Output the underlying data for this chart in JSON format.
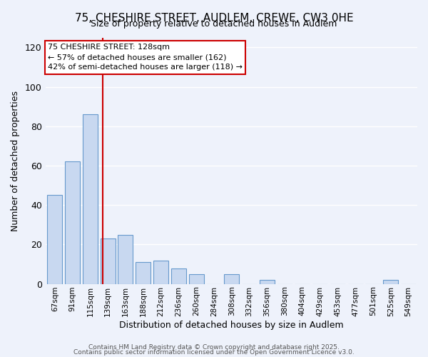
{
  "title": "75, CHESHIRE STREET, AUDLEM, CREWE, CW3 0HE",
  "subtitle": "Size of property relative to detached houses in Audlem",
  "xlabel": "Distribution of detached houses by size in Audlem",
  "ylabel": "Number of detached properties",
  "bar_labels": [
    "67sqm",
    "91sqm",
    "115sqm",
    "139sqm",
    "163sqm",
    "188sqm",
    "212sqm",
    "236sqm",
    "260sqm",
    "284sqm",
    "308sqm",
    "332sqm",
    "356sqm",
    "380sqm",
    "404sqm",
    "429sqm",
    "453sqm",
    "477sqm",
    "501sqm",
    "525sqm",
    "549sqm"
  ],
  "bar_values": [
    45,
    62,
    86,
    23,
    25,
    11,
    12,
    8,
    5,
    0,
    5,
    0,
    2,
    0,
    0,
    0,
    0,
    0,
    0,
    2,
    0
  ],
  "bar_color": "#c8d8f0",
  "bar_edgecolor": "#6699cc",
  "vline_x": 2.72,
  "vline_color": "#cc0000",
  "annotation_text": "75 CHESHIRE STREET: 128sqm\n← 57% of detached houses are smaller (162)\n42% of semi-detached houses are larger (118) →",
  "annotation_box_color": "#ffffff",
  "annotation_box_edgecolor": "#cc0000",
  "ylim": [
    0,
    125
  ],
  "yticks": [
    0,
    20,
    40,
    60,
    80,
    100,
    120
  ],
  "bg_color": "#eef2fb",
  "grid_color": "#ffffff",
  "footer1": "Contains HM Land Registry data © Crown copyright and database right 2025.",
  "footer2": "Contains public sector information licensed under the Open Government Licence v3.0."
}
